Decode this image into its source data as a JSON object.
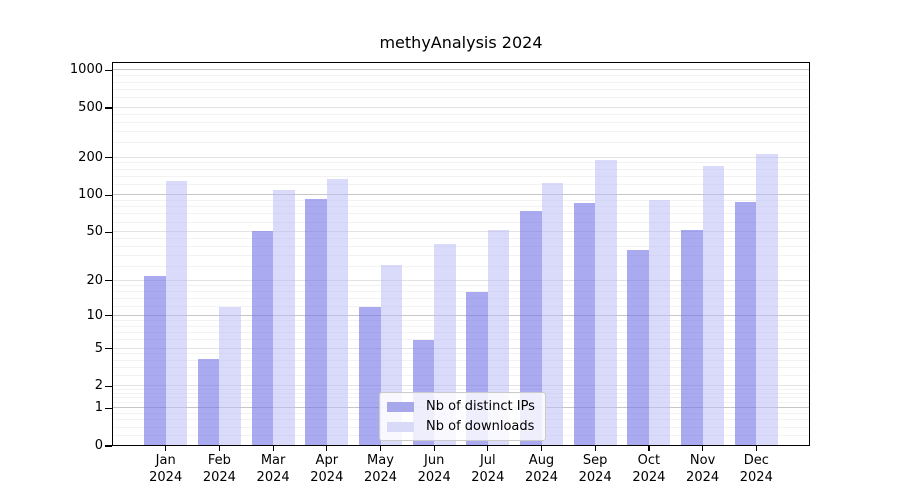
{
  "chart_data": {
    "type": "bar",
    "title": "methyAnalysis 2024",
    "xlabel": "",
    "ylabel": "",
    "categories": [
      "Jan 2024",
      "Feb 2024",
      "Mar 2024",
      "Apr 2024",
      "May 2024",
      "Jun 2024",
      "Jul 2024",
      "Aug 2024",
      "Sep 2024",
      "Oct 2024",
      "Nov 2024",
      "Dec 2024"
    ],
    "series": [
      {
        "name": "Nb of distinct IPs",
        "color": "rgba(118,118,232,0.62)",
        "solid_color": "#a7a7ec",
        "values": [
          22,
          4,
          51,
          93,
          12,
          6,
          16,
          74,
          87,
          36,
          52,
          88
        ]
      },
      {
        "name": "Nb of downloads",
        "color": "rgba(186,186,246,0.54)",
        "solid_color": "#d9d9f8",
        "values": [
          131,
          12,
          109,
          135,
          27,
          40,
          52,
          125,
          190,
          92,
          172,
          213
        ]
      }
    ],
    "yscale": "log1p",
    "y_ticks": [
      0,
      1,
      2,
      5,
      10,
      20,
      50,
      100,
      200,
      500,
      1000
    ],
    "ylim": [
      0,
      1166
    ],
    "grid": true,
    "legend_position": "lower center"
  }
}
